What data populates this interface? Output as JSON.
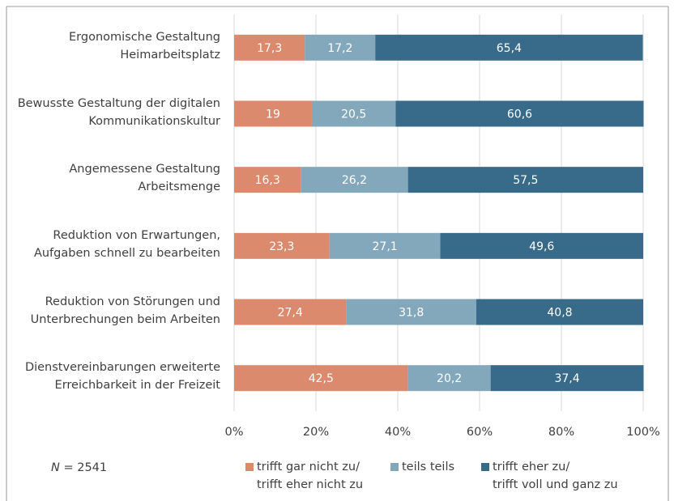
{
  "chart_data": {
    "type": "stacked_bar_horizontal",
    "categories": [
      "Ergonomische Gestaltung\nHeimarbeitsplatz",
      "Bewusste Gestaltung der digitalen\nKommunikationskultur",
      "Angemessene Gestaltung\nArbeitsmenge",
      "Reduktion von Erwartungen,\nAufgaben schnell zu bearbeiten",
      "Reduktion von Störungen und\nUnterbrechungen beim Arbeiten",
      "Dienstvereinbarungen erweiterte\nErreichbarkeit in der Freizeit"
    ],
    "series": [
      {
        "name": "trifft gar nicht zu/\ntrifft eher nicht zu",
        "color": "#dc8a6d",
        "values": [
          17.3,
          19,
          16.3,
          23.3,
          27.4,
          42.5
        ],
        "value_labels": [
          "17,3",
          "19",
          "16,3",
          "23,3",
          "27,4",
          "42,5"
        ]
      },
      {
        "name": "teils teils",
        "color": "#84a8bb",
        "values": [
          17.2,
          20.5,
          26.2,
          27.1,
          31.8,
          20.2
        ],
        "value_labels": [
          "17,2",
          "20,5",
          "26,2",
          "27,1",
          "31,8",
          "20,2"
        ]
      },
      {
        "name": "trifft eher zu/\ntrifft voll und ganz zu",
        "color": "#386a89",
        "values": [
          65.4,
          60.6,
          57.5,
          49.6,
          40.8,
          37.4
        ],
        "value_labels": [
          "65,4",
          "60,6",
          "57,5",
          "49,6",
          "40,8",
          "37,4"
        ]
      }
    ],
    "xlim": [
      0,
      100
    ],
    "xticks": [
      {
        "value": 0,
        "label": "0%"
      },
      {
        "value": 20,
        "label": "20%"
      },
      {
        "value": 40,
        "label": "40%"
      },
      {
        "value": 60,
        "label": "60%"
      },
      {
        "value": 80,
        "label": "80%"
      },
      {
        "value": 100,
        "label": "100%"
      }
    ],
    "grid": true,
    "note": {
      "symbol": "N",
      "text": "= 2541"
    }
  }
}
